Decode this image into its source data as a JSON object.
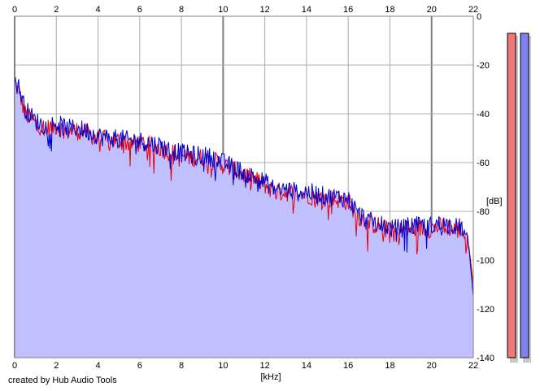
{
  "credit": "created by Hub Audio Tools",
  "chart_data": {
    "type": "area",
    "x_axis": {
      "label": "[kHz]",
      "lim": [
        0,
        22
      ],
      "ticks": [
        0,
        2,
        4,
        6,
        8,
        10,
        12,
        14,
        16,
        18,
        20,
        22
      ]
    },
    "y_axis": {
      "label": "[dB]",
      "lim": [
        -140,
        0
      ],
      "ticks": [
        0,
        -20,
        -40,
        -60,
        -80,
        -100,
        -120,
        -140
      ]
    },
    "grid": true,
    "series": [
      {
        "color": "#e8000b",
        "x": [
          0,
          0.25,
          0.5,
          1,
          1.5,
          2,
          2.5,
          3,
          3.5,
          4,
          4.5,
          5,
          5.5,
          6,
          6.5,
          7,
          7.5,
          8,
          8.5,
          9,
          9.5,
          10,
          10.5,
          11,
          11.5,
          12,
          12.5,
          13,
          13.5,
          14,
          14.5,
          15,
          15.5,
          16,
          16.5,
          17,
          17.5,
          18,
          18.5,
          19,
          19.5,
          20,
          20.5,
          21,
          21.5,
          21.8,
          22
        ],
        "values": [
          -27,
          -32,
          -40,
          -44,
          -46,
          -45,
          -47,
          -47,
          -48,
          -50,
          -51,
          -51,
          -52,
          -52,
          -53,
          -54,
          -56,
          -57,
          -58,
          -58,
          -59,
          -61,
          -63,
          -65,
          -67,
          -69,
          -72,
          -72,
          -73,
          -73,
          -74,
          -75,
          -75,
          -76,
          -82,
          -85,
          -86,
          -88,
          -88,
          -87,
          -87,
          -87,
          -86,
          -87,
          -88,
          -95,
          -110
        ]
      },
      {
        "color": "#0000cc",
        "x": [
          0,
          0.25,
          0.5,
          1,
          1.5,
          2,
          2.5,
          3,
          3.5,
          4,
          4.5,
          5,
          5.5,
          6,
          6.5,
          7,
          7.5,
          8,
          8.5,
          9,
          9.5,
          10,
          10.5,
          11,
          11.5,
          12,
          12.5,
          13,
          13.5,
          14,
          14.5,
          15,
          15.5,
          16,
          16.5,
          17,
          17.5,
          18,
          18.5,
          19,
          19.5,
          20,
          20.5,
          21,
          21.5,
          21.8,
          22
        ],
        "values": [
          -26,
          -30,
          -38,
          -43,
          -45,
          -44,
          -46,
          -46,
          -47,
          -49,
          -50,
          -50,
          -51,
          -51,
          -52,
          -53,
          -55,
          -56,
          -57,
          -57,
          -58,
          -60,
          -62,
          -64,
          -66,
          -68,
          -71,
          -71,
          -72,
          -72,
          -73,
          -74,
          -74,
          -75,
          -81,
          -84,
          -85,
          -87,
          -87,
          -86,
          -86,
          -86,
          -85,
          -86,
          -87,
          -96,
          -115
        ]
      }
    ],
    "fill_color": "#c0c0ff",
    "meters": [
      {
        "color": "#f07878",
        "level": -7
      },
      {
        "color": "#8080f0",
        "level": -7
      }
    ],
    "meter_ticks": [
      0,
      -20,
      -40,
      -60,
      -80,
      -100,
      -120,
      -140
    ]
  }
}
